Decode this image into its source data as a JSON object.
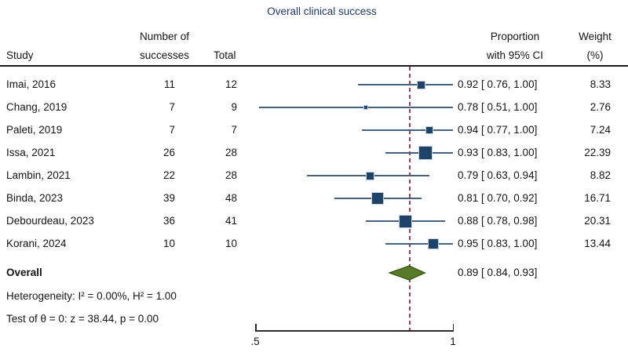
{
  "title": "Overall clinical success",
  "columns": {
    "study": "Study",
    "successes": [
      "Number of",
      "successes"
    ],
    "total": "Total",
    "proportion": [
      "Proportion",
      "with 95% CI"
    ],
    "weight": [
      "Weight",
      "(%)"
    ]
  },
  "chart_data": {
    "type": "forest",
    "title": "Overall clinical success",
    "axis": {
      "min": 0.5,
      "max": 1.0,
      "tick_labels": [
        ".5",
        "1"
      ],
      "tick_values": [
        0.5,
        1.0
      ]
    },
    "reference_line_value": 0.89,
    "studies": [
      {
        "study": "Imai, 2016",
        "successes": "11",
        "total": "12",
        "estimate": 0.92,
        "ci_low": 0.76,
        "ci_high": 1.0,
        "ci_text": "0.92 [ 0.76, 1.00]",
        "weight": "8.33"
      },
      {
        "study": "Chang, 2019",
        "successes": "7",
        "total": "9",
        "estimate": 0.78,
        "ci_low": 0.51,
        "ci_high": 1.0,
        "ci_text": "0.78 [ 0.51, 1.00]",
        "weight": "2.76"
      },
      {
        "study": "Paleti, 2019",
        "successes": "7",
        "total": "7",
        "estimate": 0.94,
        "ci_low": 0.77,
        "ci_high": 1.0,
        "ci_text": "0.94 [ 0.77, 1.00]",
        "weight": "7.24"
      },
      {
        "study": "Issa, 2021",
        "successes": "26",
        "total": "28",
        "estimate": 0.93,
        "ci_low": 0.83,
        "ci_high": 1.0,
        "ci_text": "0.93 [ 0.83, 1.00]",
        "weight": "22.39"
      },
      {
        "study": "Lambin, 2021",
        "successes": "22",
        "total": "28",
        "estimate": 0.79,
        "ci_low": 0.63,
        "ci_high": 0.94,
        "ci_text": "0.79 [ 0.63, 0.94]",
        "weight": "8.82"
      },
      {
        "study": "Binda, 2023",
        "successes": "39",
        "total": "48",
        "estimate": 0.81,
        "ci_low": 0.7,
        "ci_high": 0.92,
        "ci_text": "0.81 [ 0.70, 0.92]",
        "weight": "16.71"
      },
      {
        "study": "Debourdeau, 2023",
        "successes": "36",
        "total": "41",
        "estimate": 0.88,
        "ci_low": 0.78,
        "ci_high": 0.98,
        "ci_text": "0.88 [ 0.78, 0.98]",
        "weight": "20.31"
      },
      {
        "study": "Korani, 2024",
        "successes": "10",
        "total": "10",
        "estimate": 0.95,
        "ci_low": 0.83,
        "ci_high": 1.0,
        "ci_text": "0.95 [ 0.83, 1.00]",
        "weight": "13.44"
      }
    ],
    "overall": {
      "label": "Overall",
      "estimate": 0.89,
      "ci_low": 0.84,
      "ci_high": 0.93,
      "ci_text": "0.89 [ 0.84, 0.93]"
    }
  },
  "stats": {
    "heterogeneity": "Heterogeneity: I² = 0.00%, H² = 1.00",
    "test": "Test of θ = 0: z = 38.44, p = 0.00"
  },
  "colors": {
    "title": "#1f3864",
    "square_fill": "#1d4368",
    "square_border": "#c9d2dc",
    "ci_line": "#44607a",
    "diamond_fill": "#567b2b",
    "diamond_border": "#31510f",
    "reference_line": "#a9395a",
    "axis": "#2a2a2a",
    "text": "#141414"
  }
}
